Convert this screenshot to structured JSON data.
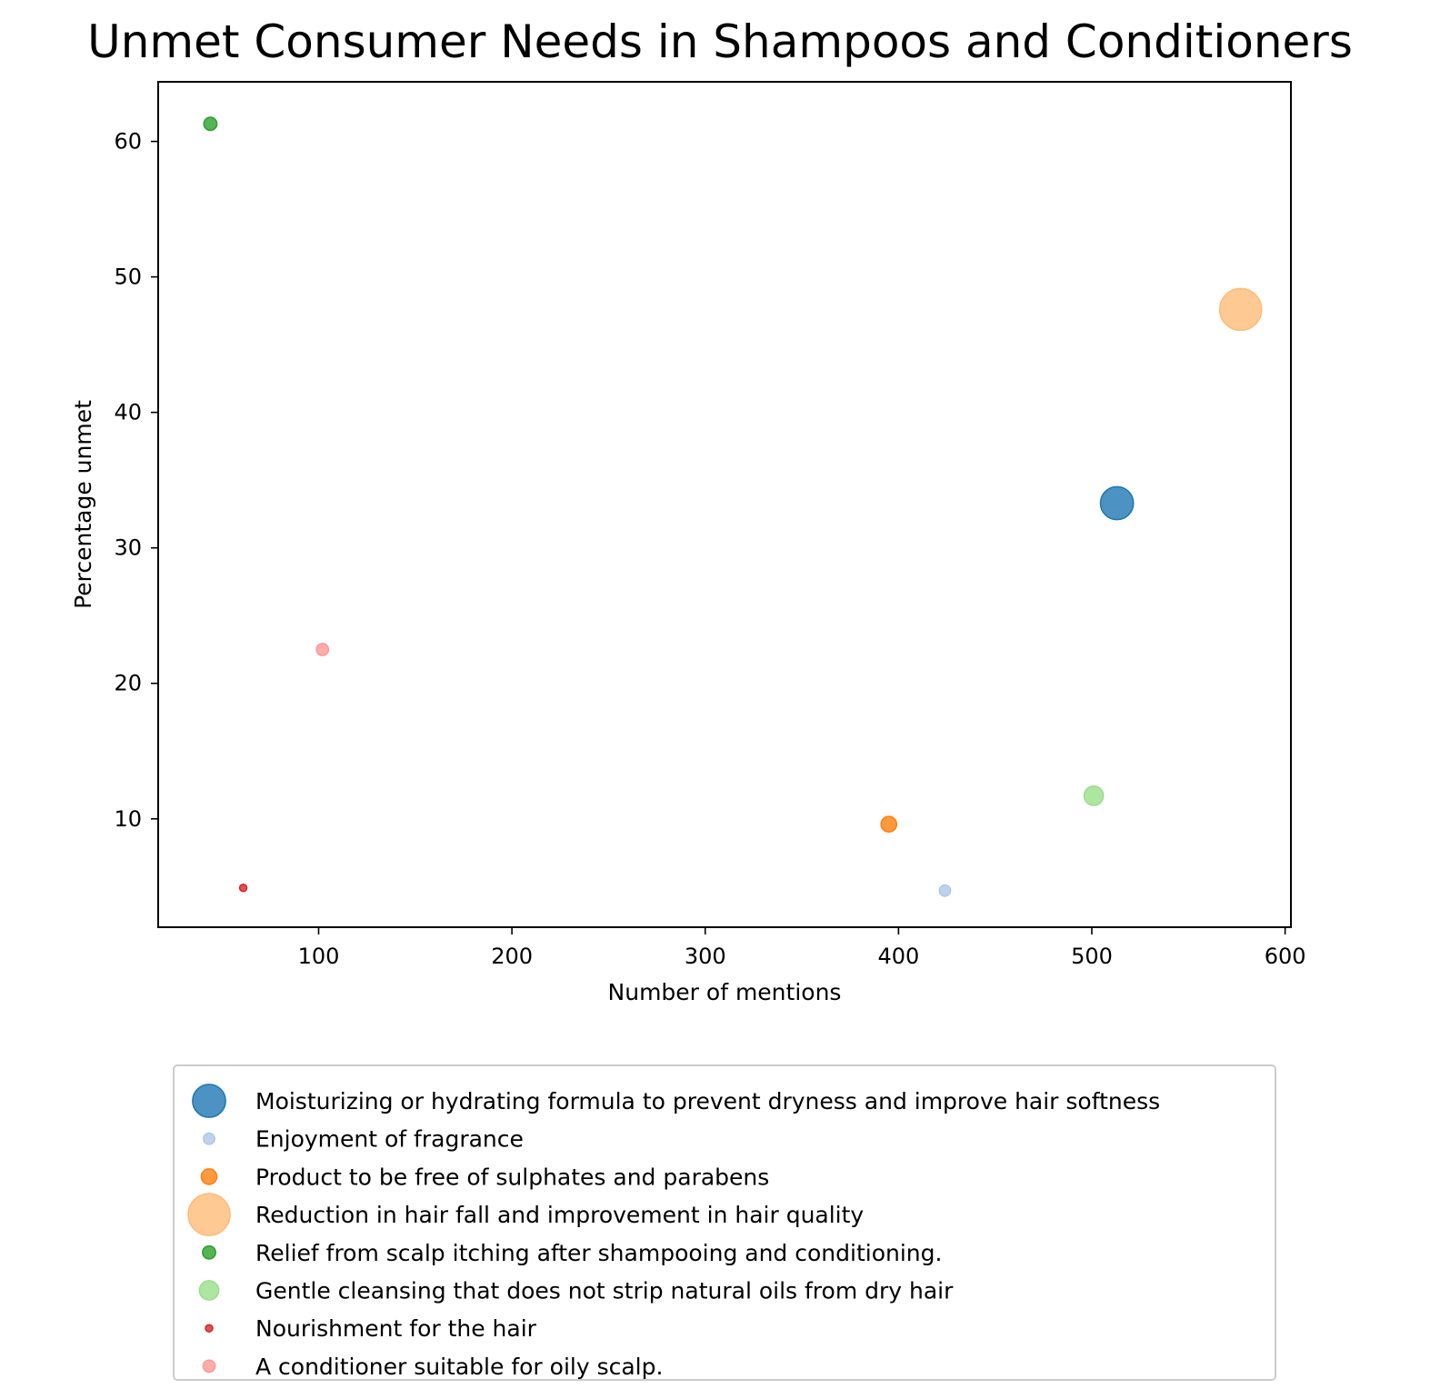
{
  "chart_data": {
    "type": "scatter",
    "title": "Unmet Consumer Needs in Shampoos and Conditioners",
    "xlabel": "Number of mentions",
    "ylabel": "Percentage unmet",
    "xlim": [
      17,
      603
    ],
    "ylim": [
      2,
      64.4
    ],
    "xticks": [
      100,
      200,
      300,
      400,
      500,
      600
    ],
    "yticks": [
      10,
      20,
      30,
      40,
      50,
      60
    ],
    "grid": false,
    "legend_position": "bottom-center",
    "marker_size_note": "bubble area proportional to number of mentions that are unmet",
    "series": [
      {
        "name": "Moisturizing or hydrating formula to prevent dryness and improve hair softness",
        "x": 513,
        "y": 33.3,
        "color": "#1f77b4"
      },
      {
        "name": "Enjoyment of fragrance",
        "x": 424,
        "y": 4.7,
        "color": "#aec7e8"
      },
      {
        "name": "Product to be free of sulphates and parabens",
        "x": 395,
        "y": 9.6,
        "color": "#ff7f0e"
      },
      {
        "name": "Reduction in hair fall and improvement in hair quality",
        "x": 577,
        "y": 47.6,
        "color": "#ffbb78"
      },
      {
        "name": "Relief from scalp itching after shampooing and conditioning.",
        "x": 44,
        "y": 61.3,
        "color": "#2ca02c"
      },
      {
        "name": "Gentle cleansing that does not strip natural oils from dry hair",
        "x": 501,
        "y": 11.7,
        "color": "#98df8a"
      },
      {
        "name": "Nourishment for the hair",
        "x": 61,
        "y": 4.9,
        "color": "#d62728"
      },
      {
        "name": "A conditioner suitable for oily scalp.",
        "x": 102,
        "y": 22.5,
        "color": "#ff9896"
      }
    ]
  }
}
